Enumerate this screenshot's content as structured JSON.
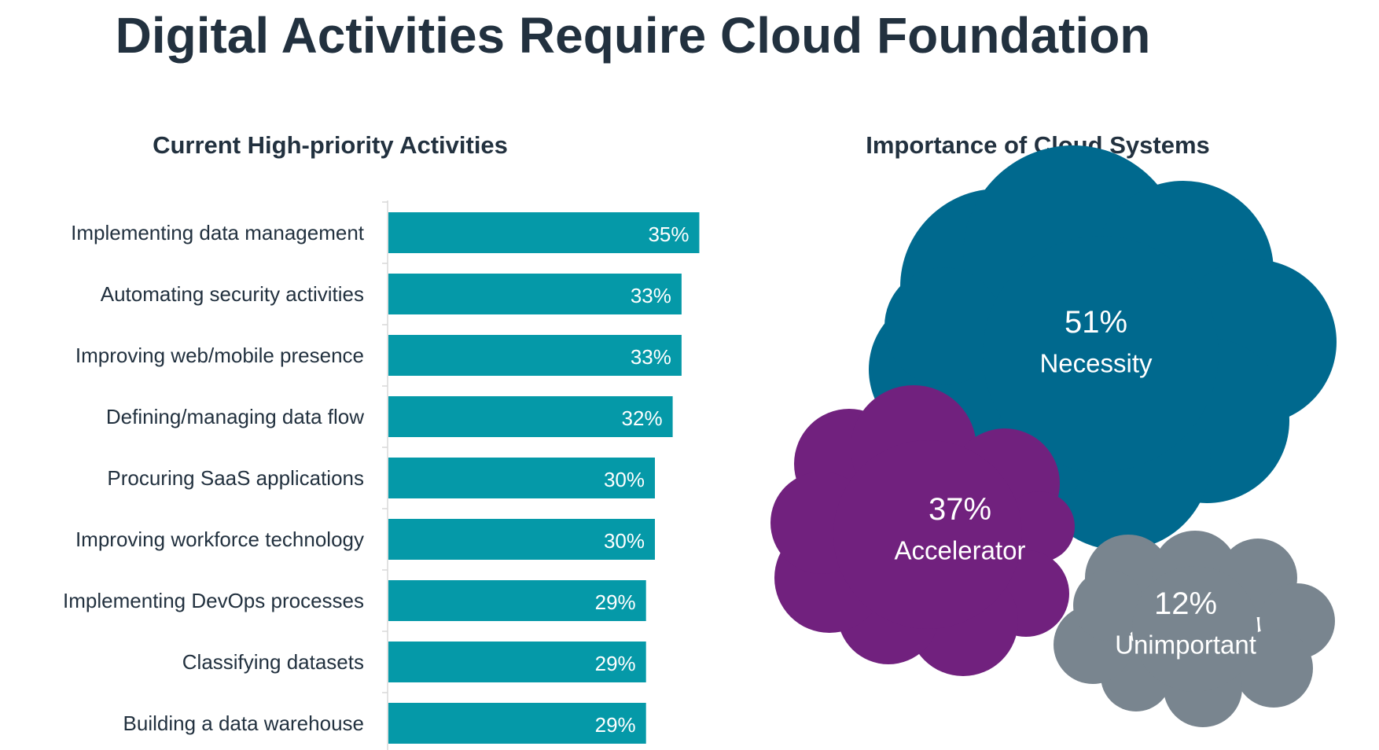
{
  "page_title": "Digital Activities Require Cloud Foundation",
  "chart_data": [
    {
      "type": "bar",
      "orientation": "horizontal",
      "title": "Current High-priority Activities",
      "categories": [
        "Implementing data management",
        "Automating security activities",
        "Improving web/mobile presence",
        "Defining/managing data flow",
        "Procuring SaaS applications",
        "Improving workforce technology",
        "Implementing DevOps processes",
        "Classifying datasets",
        "Building a data warehouse"
      ],
      "values": [
        35,
        33,
        33,
        32,
        30,
        30,
        29,
        29,
        29
      ],
      "value_labels": [
        "35%",
        "33%",
        "33%",
        "32%",
        "30%",
        "30%",
        "29%",
        "29%",
        "29%"
      ],
      "unit": "%",
      "xlim": [
        0,
        100
      ],
      "bar_color": "#0599a8",
      "grid": false
    },
    {
      "type": "cloud",
      "title": "Importance of Cloud Systems",
      "items": [
        {
          "label": "Necessity",
          "value": 51,
          "value_label": "51%",
          "color": "#00698e"
        },
        {
          "label": "Accelerator",
          "value": 37,
          "value_label": "37%",
          "color": "#71217e"
        },
        {
          "label": "Unimportant",
          "value": 12,
          "value_label": "12%",
          "color": "#79858f"
        }
      ]
    }
  ]
}
